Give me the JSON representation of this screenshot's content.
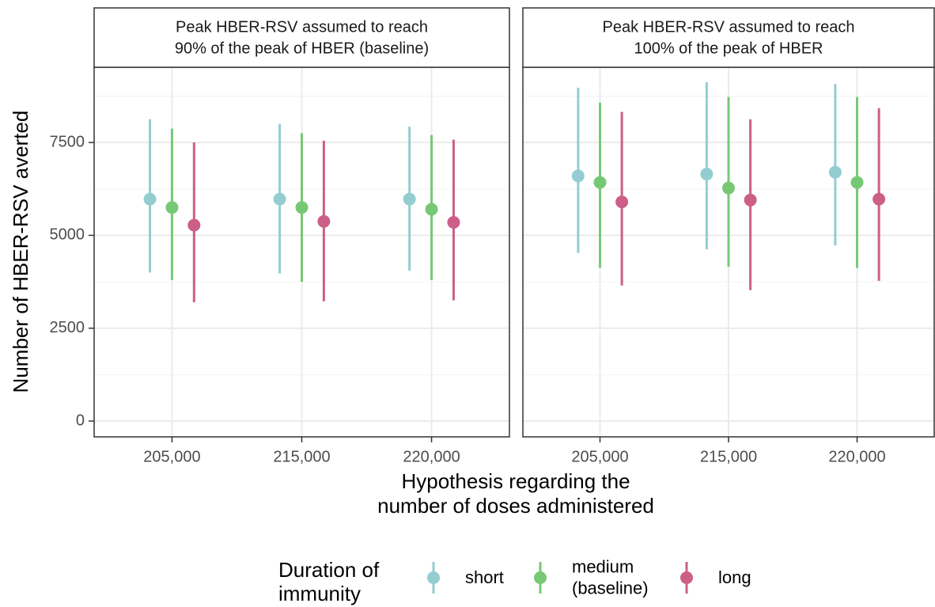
{
  "chart_data": {
    "type": "pointrange",
    "ylabel": "Number of HBER-RSV averted",
    "xlabel": [
      "Hypothesis regarding the",
      "number of doses administered"
    ],
    "legend_title": [
      "Duration of",
      "immunity"
    ],
    "categories": [
      "205,000",
      "215,000",
      "220,000"
    ],
    "series": [
      {
        "name": [
          "short"
        ],
        "color": "#93cdd1"
      },
      {
        "name": [
          "medium",
          "(baseline)"
        ],
        "color": "#77c875"
      },
      {
        "name": [
          "long"
        ],
        "color": "#cc5f88"
      }
    ],
    "facets": [
      {
        "title": [
          "Peak HBER-RSV assumed to reach",
          "90% of the peak of HBER (baseline)"
        ],
        "series": [
          {
            "values": [
              5975,
              5975,
              5975
            ],
            "lower": [
              4000,
              3975,
              4050
            ],
            "upper": [
              8125,
              8000,
              7925
            ]
          },
          {
            "values": [
              5750,
              5750,
              5700
            ],
            "lower": [
              3800,
              3750,
              3800
            ],
            "upper": [
              7875,
              7750,
              7700
            ]
          },
          {
            "values": [
              5275,
              5375,
              5350
            ],
            "lower": [
              3200,
              3225,
              3250
            ],
            "upper": [
              7500,
              7550,
              7575
            ]
          }
        ]
      },
      {
        "title": [
          "Peak HBER-RSV assumed to reach",
          "100% of the peak of HBER"
        ],
        "series": [
          {
            "values": [
              6600,
              6650,
              6700
            ],
            "lower": [
              4525,
              4625,
              4725
            ],
            "upper": [
              8975,
              9125,
              9075
            ]
          },
          {
            "values": [
              6425,
              6275,
              6425
            ],
            "lower": [
              4125,
              4150,
              4125
            ],
            "upper": [
              8575,
              8725,
              8725
            ]
          },
          {
            "values": [
              5900,
              5950,
              5975
            ],
            "lower": [
              3650,
              3525,
              3775
            ],
            "upper": [
              8325,
              8125,
              8425
            ]
          }
        ]
      }
    ],
    "ylim": [
      -425,
      9525
    ],
    "yticks": [
      0,
      2500,
      5000,
      7500
    ],
    "grid": true
  }
}
